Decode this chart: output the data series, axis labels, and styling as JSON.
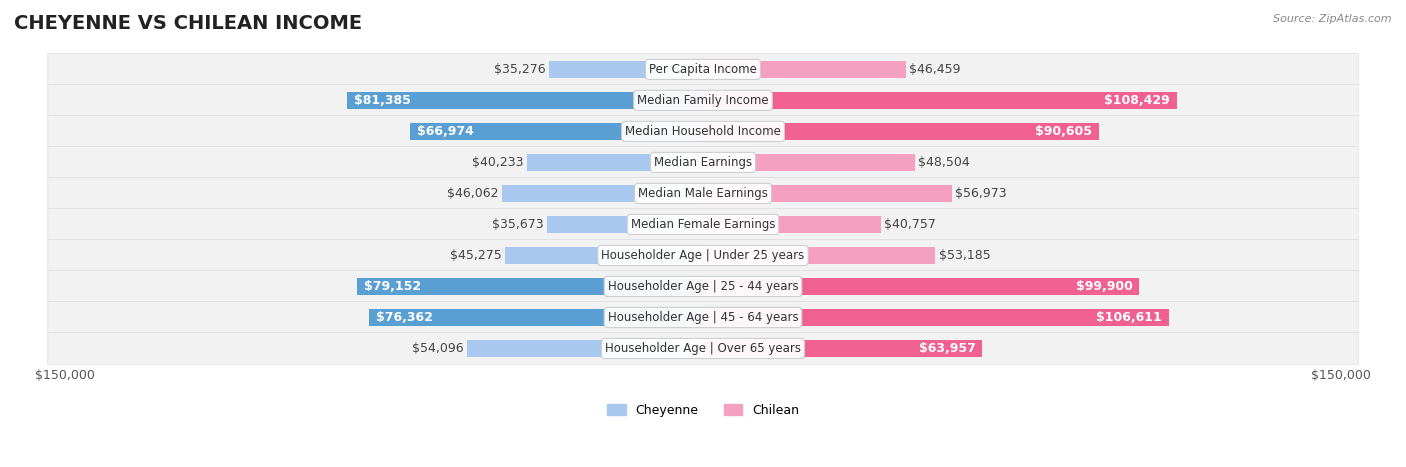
{
  "title": "CHEYENNE VS CHILEAN INCOME",
  "source": "Source: ZipAtlas.com",
  "categories": [
    "Per Capita Income",
    "Median Family Income",
    "Median Household Income",
    "Median Earnings",
    "Median Male Earnings",
    "Median Female Earnings",
    "Householder Age | Under 25 years",
    "Householder Age | 25 - 44 years",
    "Householder Age | 45 - 64 years",
    "Householder Age | Over 65 years"
  ],
  "cheyenne_values": [
    35276,
    81385,
    66974,
    40233,
    46062,
    35673,
    45275,
    79152,
    76362,
    54096
  ],
  "chilean_values": [
    46459,
    108429,
    90605,
    48504,
    56973,
    40757,
    53185,
    99900,
    106611,
    63957
  ],
  "cheyenne_labels": [
    "$35,276",
    "$81,385",
    "$66,974",
    "$40,233",
    "$46,062",
    "$35,673",
    "$45,275",
    "$79,152",
    "$76,362",
    "$54,096"
  ],
  "chilean_labels": [
    "$46,459",
    "$108,429",
    "$90,605",
    "$48,504",
    "$56,973",
    "$40,757",
    "$53,185",
    "$99,900",
    "$106,611",
    "$63,957"
  ],
  "cheyenne_color_light": "#a8c8f0",
  "cheyenne_color_dark": "#5a9fd4",
  "chilean_color_light": "#f5a0c0",
  "chilean_color_dark": "#f06090",
  "row_bg_color": "#f2f2f2",
  "row_border_color": "#dddddd",
  "max_value": 150000,
  "bar_height": 0.55,
  "title_fontsize": 14,
  "label_fontsize": 9,
  "axis_label": "$150,000",
  "background_color": "#ffffff"
}
